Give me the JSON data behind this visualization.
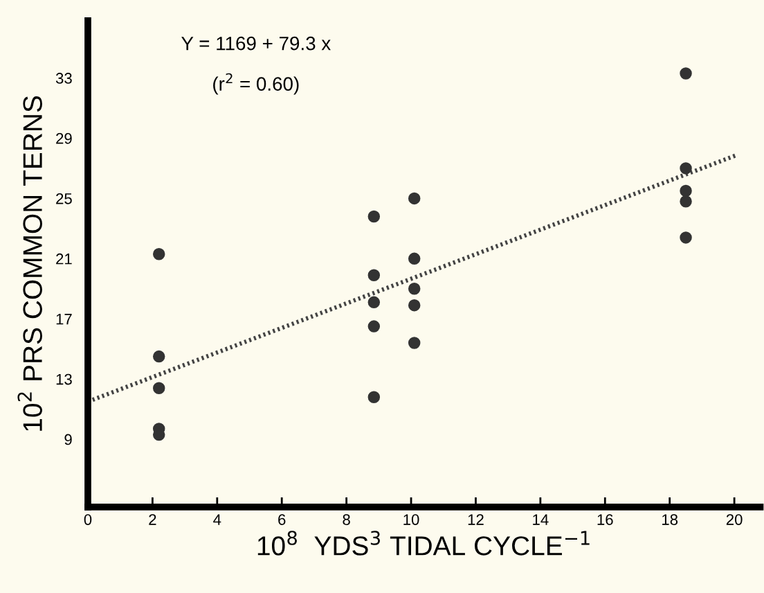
{
  "chart_data": {
    "type": "scatter",
    "xlabel": "10$^{8}$  YDS$^{3}$ TIDAL CYCLE$^{−1}$",
    "ylabel": "10$^{2}$ PRS COMMON TERNS",
    "annotations": [
      "Y = 1169 + 79.3 x",
      "(r$^{2}$ = 0.60)"
    ],
    "series": [
      {
        "color": "#333333",
        "marker": "circle",
        "x": [
          2.2,
          2.2,
          2.2,
          2.2,
          2.2,
          8.85,
          8.85,
          8.85,
          8.85,
          8.85,
          10.1,
          10.1,
          10.1,
          10.1,
          10.1,
          18.5,
          18.5,
          18.5,
          18.5,
          18.5
        ],
        "values": [
          21.3,
          14.5,
          12.4,
          9.7,
          9.3,
          23.8,
          19.9,
          18.1,
          16.5,
          11.8,
          25.0,
          21.0,
          19.0,
          17.9,
          15.4,
          33.3,
          27.0,
          25.5,
          24.8,
          22.4
        ]
      },
      {
        "type": "line",
        "color": "#444444",
        "line_style": "dotted",
        "marker": "none",
        "x": [
          0,
          20.1
        ],
        "values": [
          11.5,
          27.9
        ]
      }
    ],
    "xlim": [
      0,
      20.8
    ],
    "xticks": [
      0,
      2,
      4,
      6,
      8,
      10,
      12,
      14,
      16,
      18,
      20
    ],
    "ylim": [
      4.5,
      36.8
    ],
    "yticks": [
      9,
      13,
      17,
      21,
      25,
      29,
      33
    ],
    "grid": false,
    "legend": false
  }
}
